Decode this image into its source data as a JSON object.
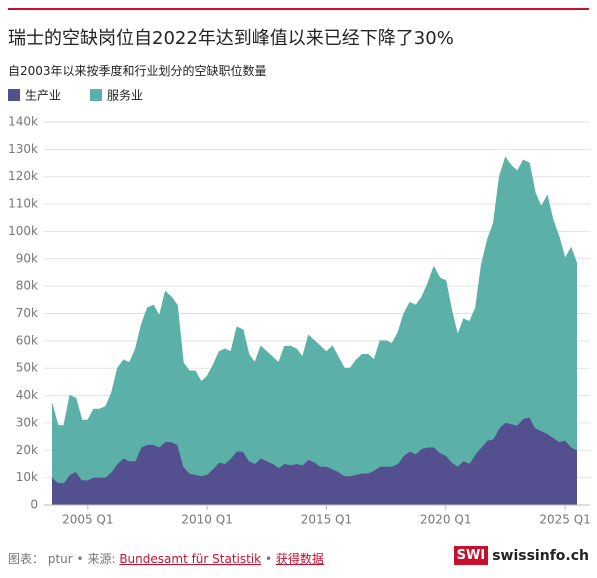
{
  "chart_data": {
    "type": "stacked_area",
    "title": "瑞士的空缺岗位自2022年达到峰值以来已经下降了30%",
    "subtitle": "自2003年以来按季度和行业划分的空缺职位数量",
    "categories": [
      null,
      null,
      null,
      null,
      null,
      null,
      "2005 Q1",
      null,
      null,
      null,
      null,
      null,
      null,
      null,
      null,
      null,
      null,
      null,
      null,
      null,
      null,
      null,
      null,
      null,
      null,
      null,
      "2010 Q1",
      null,
      null,
      null,
      null,
      null,
      null,
      null,
      null,
      null,
      null,
      null,
      null,
      null,
      null,
      null,
      null,
      null,
      null,
      null,
      "2015 Q1",
      null,
      null,
      null,
      null,
      null,
      null,
      null,
      null,
      null,
      null,
      null,
      null,
      null,
      null,
      null,
      null,
      null,
      null,
      null,
      "2020 Q1",
      null,
      null,
      null,
      null,
      null,
      null,
      null,
      null,
      null,
      null,
      null,
      null,
      null,
      null,
      null,
      null,
      null,
      null,
      null,
      "2025 Q1",
      null,
      null
    ],
    "series": [
      {
        "name": "生产业",
        "color": "#544f8e",
        "values": [
          10,
          8,
          8,
          11,
          12,
          9,
          9,
          10,
          10,
          10,
          12,
          15,
          17,
          16,
          16,
          21,
          22,
          22,
          21,
          23,
          23,
          22,
          14,
          11.5,
          11,
          10.5,
          11,
          13,
          15.5,
          15,
          17,
          19.5,
          19.5,
          16,
          15,
          17,
          16,
          15,
          13.5,
          15,
          14.5,
          15,
          14.5,
          16.5,
          15.5,
          14,
          14,
          13,
          12,
          10.5,
          10.5,
          11,
          11.5,
          11.5,
          12.5,
          14,
          14,
          14,
          15,
          18,
          19.5,
          18.5,
          20.5,
          21,
          21,
          19,
          18,
          15.5,
          14,
          16,
          15,
          18.5,
          21,
          23.5,
          24,
          28,
          30,
          29.5,
          29,
          31.5,
          32,
          28,
          27,
          26,
          24.5,
          23,
          23.5,
          21,
          20
        ]
      },
      {
        "name": "服务业",
        "color": "#5bb1a7",
        "values": [
          27,
          21,
          21,
          29,
          27,
          22,
          22,
          25,
          25,
          26,
          29,
          35,
          36,
          36,
          41,
          45,
          50,
          51,
          48,
          55,
          53,
          51,
          38,
          37.5,
          38,
          34.5,
          36,
          38,
          40.5,
          42,
          39,
          45.5,
          44.5,
          39,
          37,
          41,
          40,
          39,
          38.5,
          43,
          43.5,
          42,
          39.5,
          45.5,
          44.5,
          44,
          42,
          45,
          42,
          39.5,
          39.5,
          42,
          43.5,
          43.5,
          40.5,
          46,
          46,
          45,
          48,
          52,
          54.5,
          54.5,
          55.5,
          60,
          66,
          64,
          64,
          55.5,
          48,
          52,
          52,
          53.5,
          67,
          73.5,
          79,
          92,
          97,
          94.5,
          93,
          94.5,
          93,
          86,
          82,
          87,
          79.5,
          75,
          66.5,
          73,
          68
        ]
      }
    ],
    "ylim": [
      0,
      140
    ],
    "yticks": [
      0,
      {
        "value": 10,
        "label": "10k"
      },
      {
        "value": 20,
        "label": "20k"
      },
      {
        "value": 30,
        "label": "30k"
      },
      {
        "value": 40,
        "label": "40k"
      },
      {
        "value": 50,
        "label": "50k"
      },
      {
        "value": 60,
        "label": "60k"
      },
      {
        "value": 70,
        "label": "70k"
      },
      {
        "value": 80,
        "label": "80k"
      },
      {
        "value": 90,
        "label": "90k"
      },
      {
        "value": 100,
        "label": "100k"
      },
      {
        "value": 110,
        "label": "110k"
      },
      {
        "value": 120,
        "label": "120k"
      },
      {
        "value": 130,
        "label": "130k"
      },
      {
        "value": 140,
        "label": "140k"
      }
    ],
    "grid": true,
    "legend": "top-left"
  },
  "footer": {
    "credit_label": "图表：",
    "credit": "ptur",
    "separator": "•",
    "source_label": "来源:",
    "source": "Bundesamt für Statistik",
    "data_link": "获得数据",
    "logo_mark": "SWI",
    "logo_text": "swissinfo.ch"
  }
}
